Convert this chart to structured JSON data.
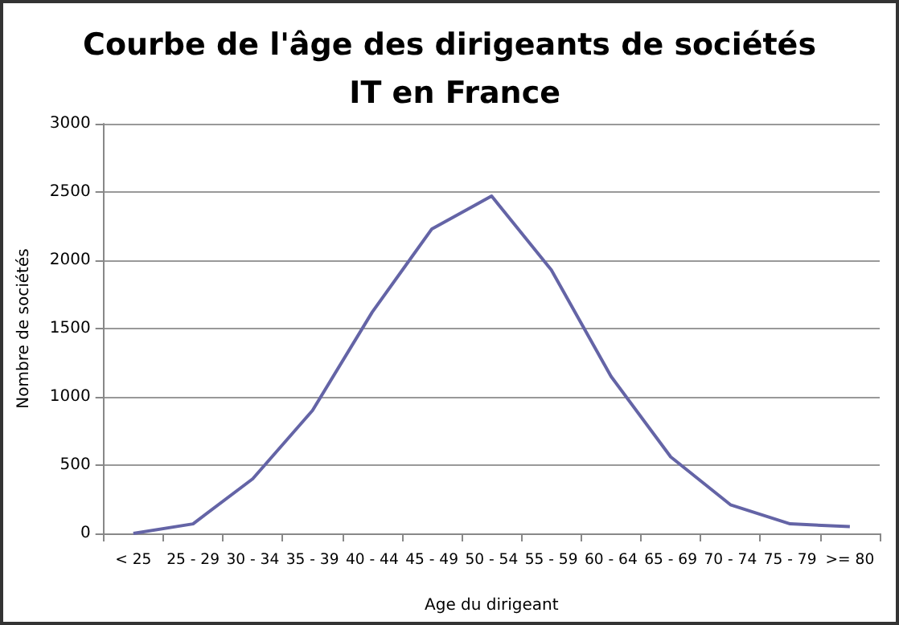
{
  "chart_data": {
    "type": "line",
    "title": "Courbe de l'âge des dirigeants de sociétés IT en France",
    "xlabel": "Age du dirigeant",
    "ylabel": "Nombre de sociétés",
    "categories": [
      "< 25",
      "25 - 29",
      "30 - 34",
      "35 - 39",
      "40 - 44",
      "45 - 49",
      "50 - 54",
      "55 - 59",
      "60 - 64",
      "65 - 69",
      "70 - 74",
      "75 - 79",
      ">= 80"
    ],
    "series": [
      {
        "color": "#6464a6",
        "values": [
          0,
          70,
          400,
          900,
          1620,
          2230,
          2470,
          1930,
          1150,
          560,
          210,
          70,
          50
        ]
      }
    ],
    "ylim": [
      0,
      3000
    ],
    "yticks": [
      0,
      500,
      1000,
      1500,
      2000,
      2500,
      3000
    ],
    "grid": "y",
    "marker": "none",
    "line_style": "solid"
  }
}
